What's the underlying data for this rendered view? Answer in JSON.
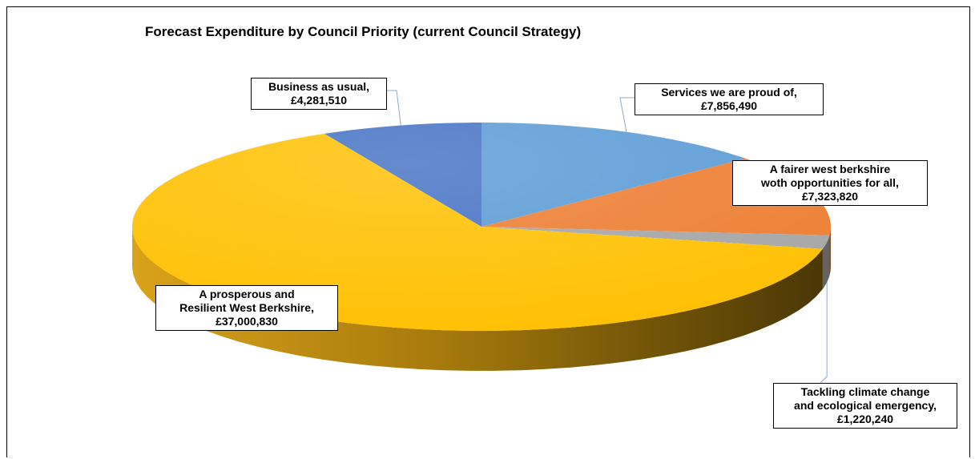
{
  "chart_data": {
    "type": "pie",
    "title": "Forecast Expenditure by Council Priority (current Council Strategy)",
    "slices": [
      {
        "name": "Services we are proud of",
        "value": 7856490,
        "label_value": "£7,856,490",
        "color": "#5b9bd5"
      },
      {
        "name": "A fairer west berkshire woth opportunities for all",
        "value": 7323820,
        "label_value": "£7,323,820",
        "color": "#ed7d31"
      },
      {
        "name": "Tackling climate change and ecological emergency",
        "value": 1220240,
        "label_value": "£1,220,240",
        "color": "#a5a5a5"
      },
      {
        "name": "A prosperous and Resilient West Berkshire",
        "value": 37000830,
        "label_value": "£37,000,830",
        "color": "#ffc000"
      },
      {
        "name": "Business as usual",
        "value": 4281510,
        "label_value": "£4,281,510",
        "color": "#4472c4"
      }
    ],
    "labels": [
      {
        "line1": "Services we are proud of,",
        "line2": "£7,856,490"
      },
      {
        "line1": "A fairer west berkshire",
        "line2": "woth opportunities for all,",
        "line3": "£7,323,820"
      },
      {
        "line1": "Tackling climate change",
        "line2": "and ecological emergency,",
        "line3": "£1,220,240"
      },
      {
        "line1": "A prosperous and",
        "line2": "Resilient West Berkshire,",
        "line3": "£37,000,830"
      },
      {
        "line1": "Business as usual,",
        "line2": "£4,281,510"
      }
    ],
    "style": "3d-pie"
  }
}
